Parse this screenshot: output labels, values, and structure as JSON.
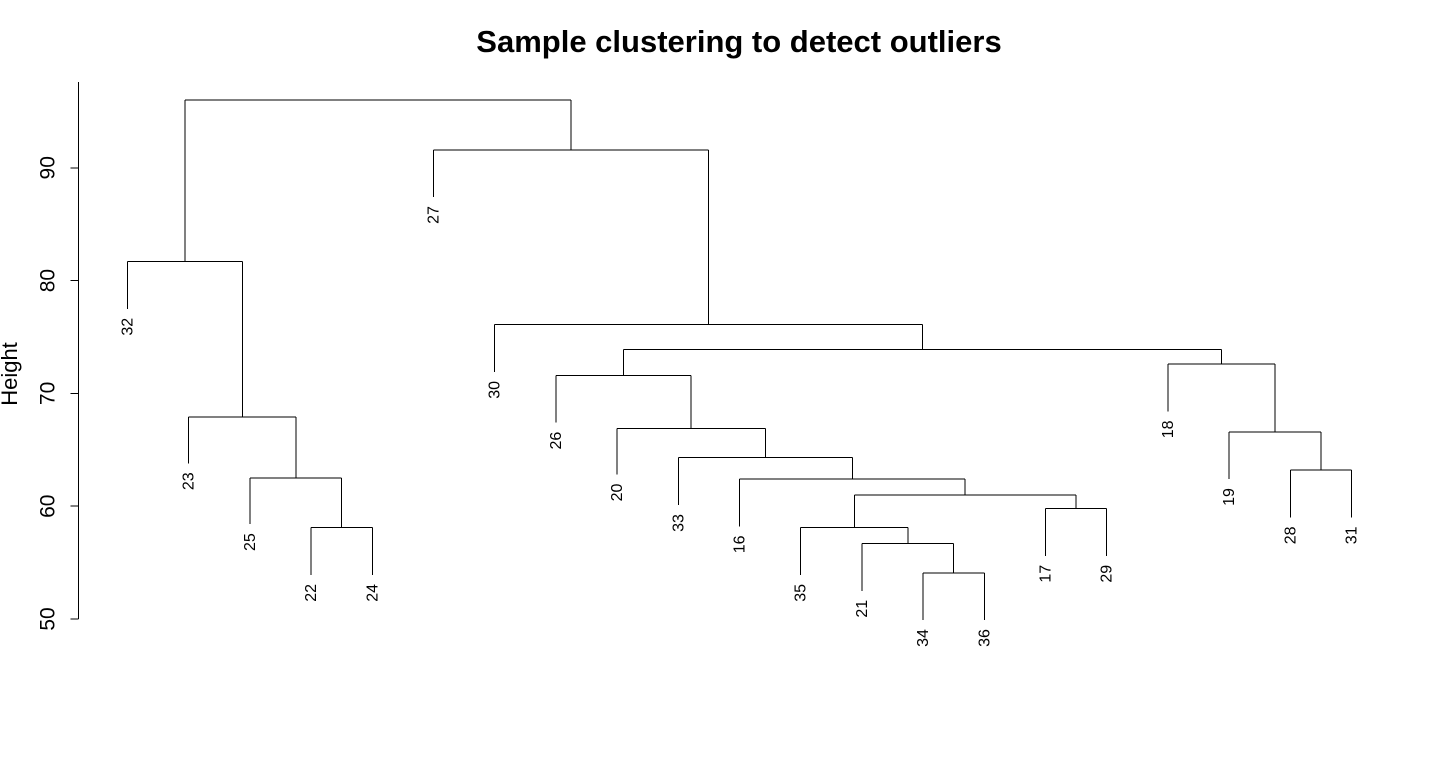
{
  "chart_data": {
    "type": "dendrogram",
    "title": "Sample clustering to detect outliers",
    "xlabel": "",
    "ylabel": "Height",
    "ylim": [
      50,
      96
    ],
    "yticks": [
      50,
      60,
      70,
      80,
      90
    ],
    "leaf_order": [
      "32",
      "23",
      "25",
      "22",
      "24",
      "27",
      "30",
      "26",
      "20",
      "33",
      "16",
      "35",
      "21",
      "34",
      "36",
      "17",
      "29",
      "18",
      "19",
      "28",
      "31"
    ],
    "merges": [
      {
        "a": "34",
        "b": "36",
        "height": 54.1
      },
      {
        "a": "22",
        "b": "24",
        "height": 58.1
      },
      {
        "a": "21",
        "b": "m1",
        "height": 56.7
      },
      {
        "a": "35",
        "b": "m3",
        "height": 58.1
      },
      {
        "a": "17",
        "b": "29",
        "height": 59.8
      },
      {
        "a": "m4",
        "b": "m5",
        "height": 61.0
      },
      {
        "a": "16",
        "b": "m6",
        "height": 62.4
      },
      {
        "a": "25",
        "b": "m2",
        "height": 62.5
      },
      {
        "a": "28",
        "b": "31",
        "height": 63.2
      },
      {
        "a": "33",
        "b": "m7",
        "height": 64.3
      },
      {
        "a": "19",
        "b": "m9",
        "height": 66.6
      },
      {
        "a": "20",
        "b": "m10",
        "height": 66.9
      },
      {
        "a": "23",
        "b": "m8",
        "height": 67.9
      },
      {
        "a": "26",
        "b": "m12",
        "height": 71.6
      },
      {
        "a": "18",
        "b": "m11",
        "height": 72.6
      },
      {
        "a": "m14",
        "b": "m15",
        "height": 73.9
      },
      {
        "a": "30",
        "b": "m16",
        "height": 76.1
      },
      {
        "a": "32",
        "b": "m13",
        "height": 81.7
      },
      {
        "a": "27",
        "b": "m17",
        "height": 91.6
      },
      {
        "a": "m18",
        "b": "m19",
        "height": 96.0
      }
    ],
    "leaf_heights": {
      "32": 77.5,
      "23": 63.8,
      "25": 58.4,
      "22": 53.9,
      "24": 53.9,
      "27": 87.4,
      "30": 71.9,
      "26": 67.4,
      "20": 62.8,
      "33": 60.1,
      "16": 58.2,
      "35": 53.9,
      "21": 52.5,
      "34": 49.9,
      "36": 49.9,
      "17": 55.6,
      "29": 55.6,
      "18": 68.4,
      "19": 62.4,
      "28": 59.0,
      "31": 59.0
    }
  }
}
